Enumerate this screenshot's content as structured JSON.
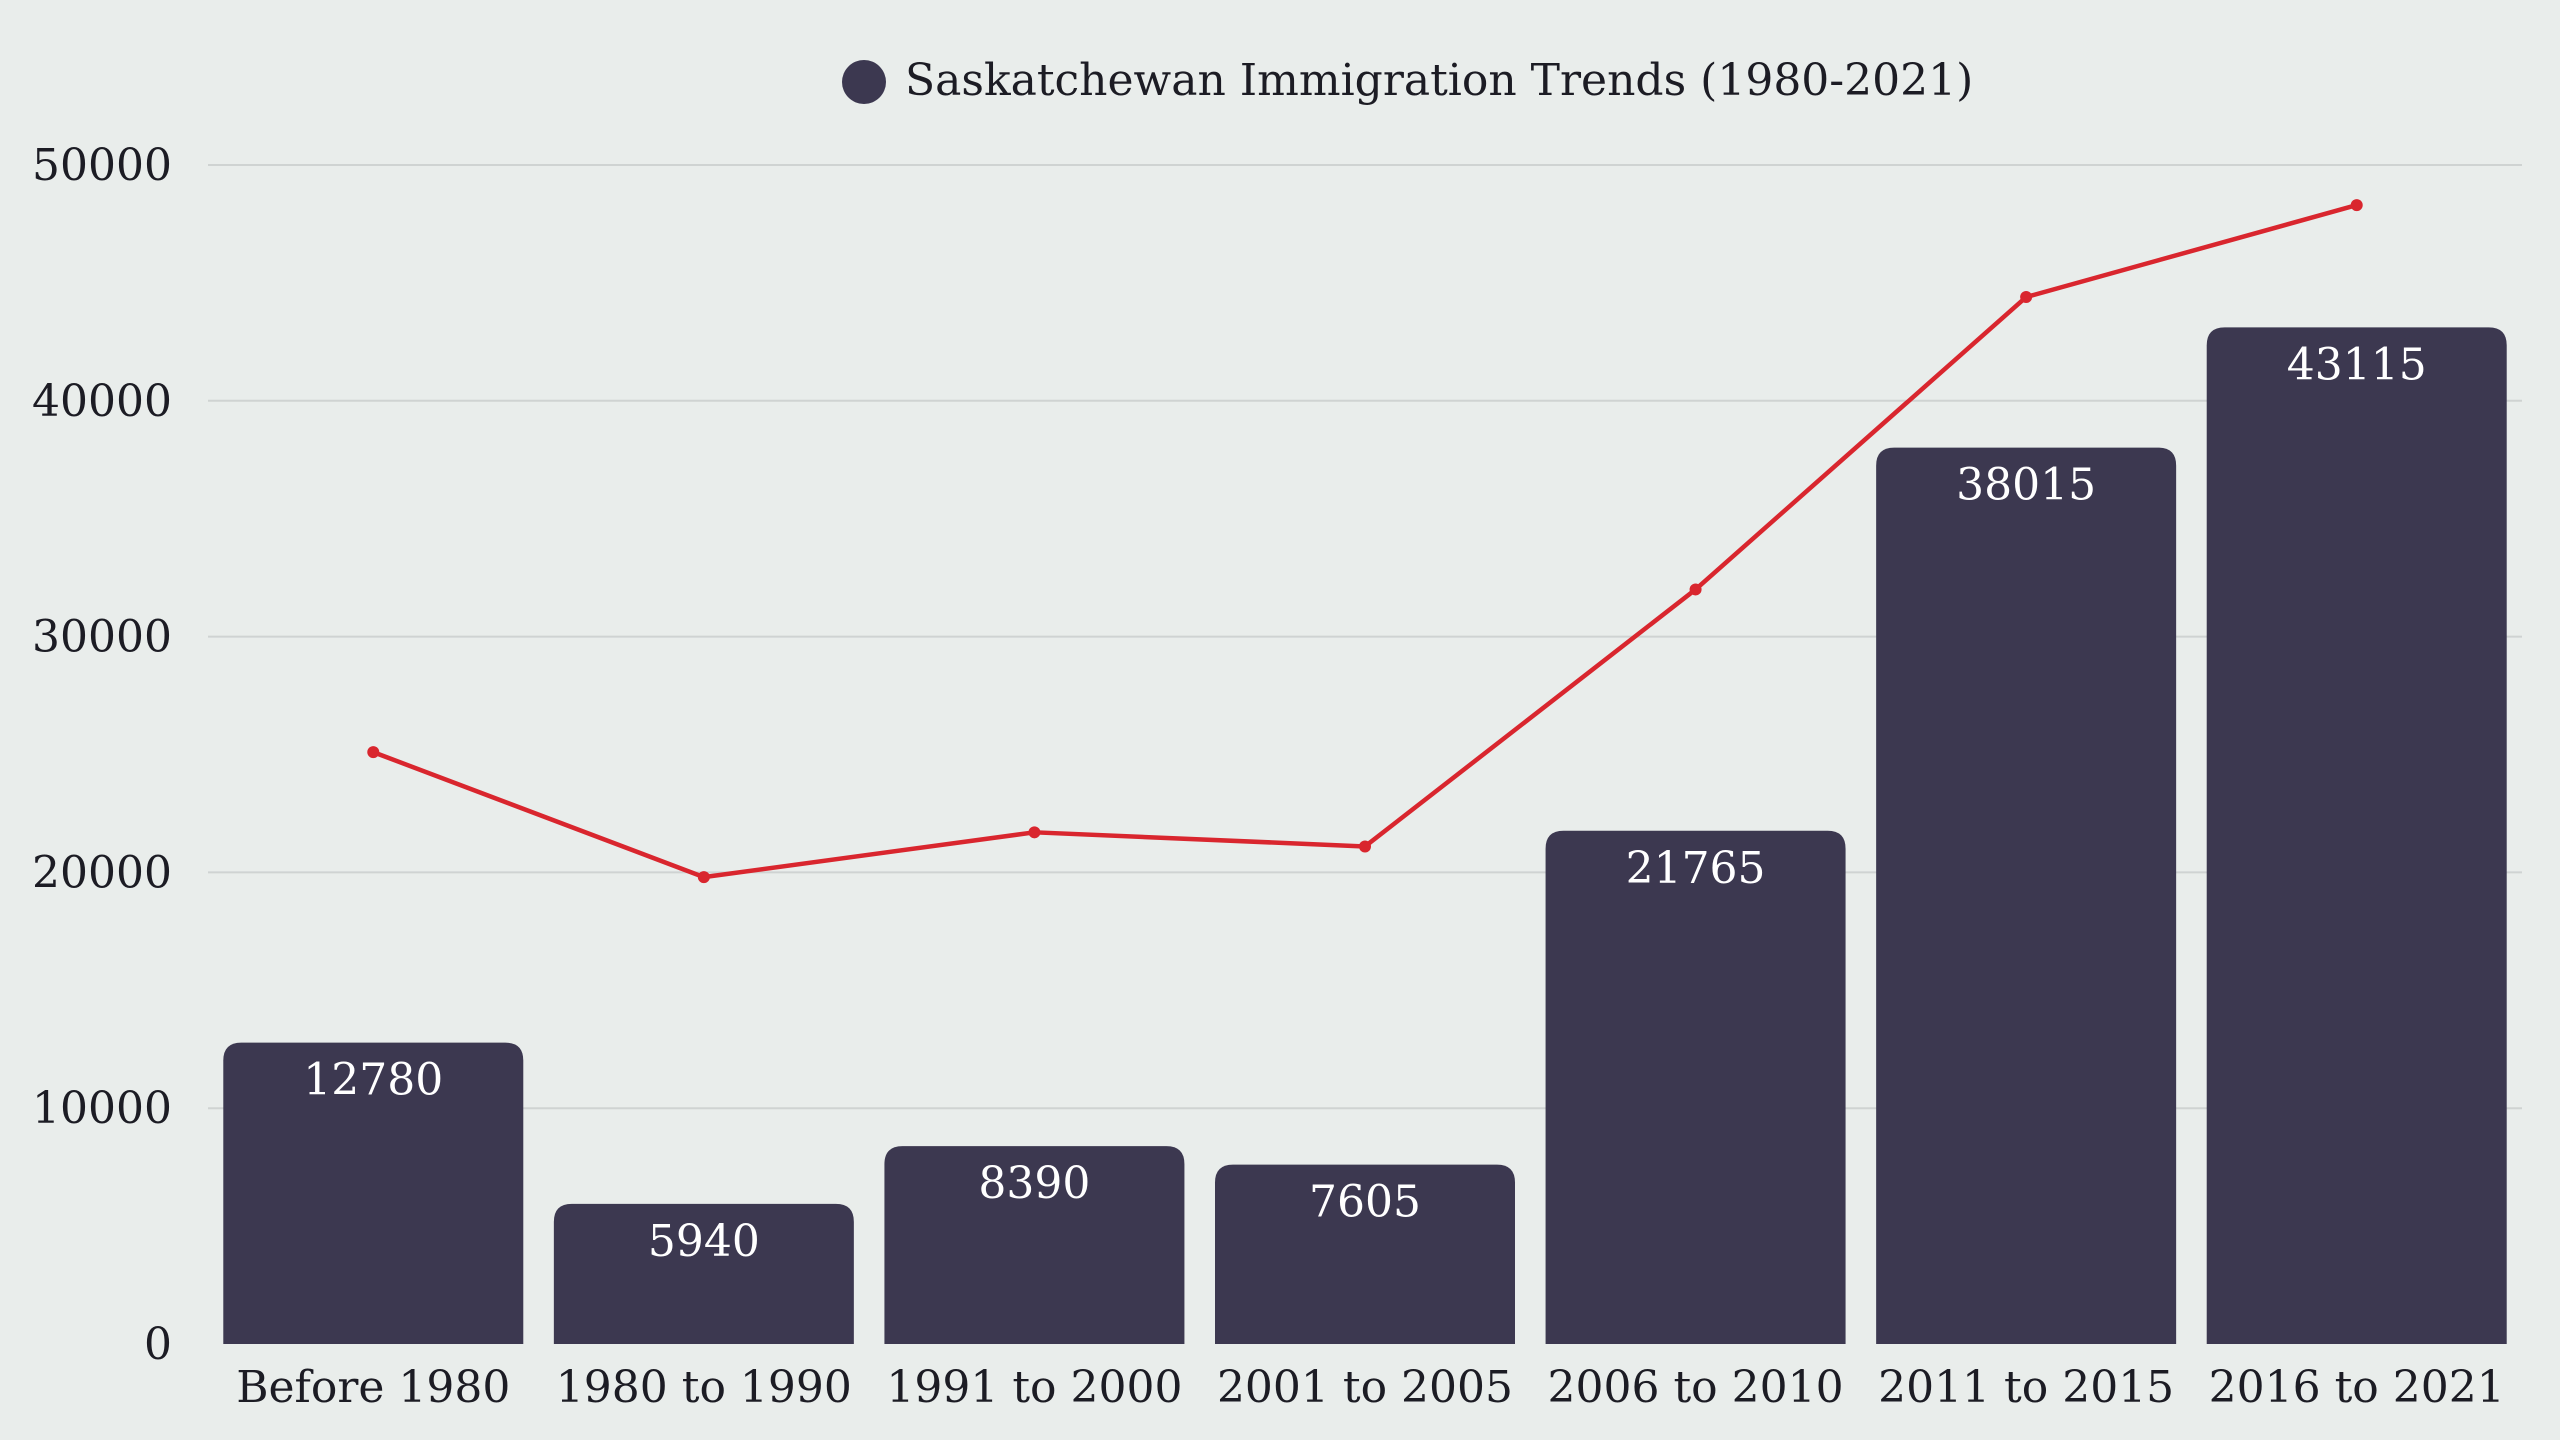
{
  "chart_data": {
    "type": "bar",
    "title": "",
    "xlabel": "",
    "ylabel": "",
    "ylim": [
      0,
      50000
    ],
    "yticks": [
      0,
      10000,
      20000,
      30000,
      40000,
      50000
    ],
    "grid": true,
    "legend_position": "top-center",
    "categories": [
      "Before 1980",
      "1980 to 1990",
      "1991 to 2000",
      "2001 to 2005",
      "2006 to 2010",
      "2011 to 2015",
      "2016 to 2021"
    ],
    "series": [
      {
        "name": "Saskatchewan Immigration Trends (1980-2021)",
        "type": "bar",
        "color": "#3c3850",
        "values": [
          12780,
          5940,
          8390,
          7605,
          21765,
          38015,
          43115
        ],
        "data_labels": true
      },
      {
        "type": "line",
        "color": "#d9262e",
        "values": [
          25100,
          19800,
          21700,
          21100,
          32000,
          44400,
          48300
        ]
      }
    ]
  }
}
